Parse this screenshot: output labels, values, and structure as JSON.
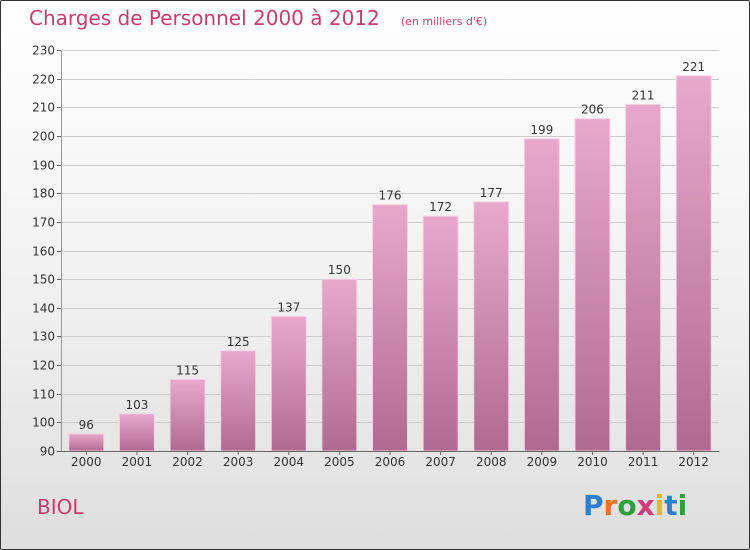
{
  "title": "Charges de Personnel 2000 à 2012",
  "subtitle": "(en milliers d'€)",
  "commune": "BIOL",
  "brand": {
    "letters": [
      "P",
      "r",
      "o",
      "x",
      "i",
      "t",
      "i"
    ],
    "colors": [
      "#2f7fd1",
      "#e8742a",
      "#2f9f3a",
      "#d63a7a",
      "#f2b21c",
      "#2f7fd1",
      "#2f9f3a"
    ]
  },
  "colors": {
    "bar_top": "#e8a8cc",
    "bar_bottom": "#b06a92",
    "bar_edge": "#f5d3e6",
    "grid": "#cccccc",
    "axis_text": "#333333"
  },
  "chart_data": {
    "type": "bar",
    "title": "Charges de Personnel 2000 à 2012",
    "xlabel": "",
    "ylabel": "",
    "categories": [
      "2000",
      "2001",
      "2002",
      "2003",
      "2004",
      "2005",
      "2006",
      "2007",
      "2008",
      "2009",
      "2010",
      "2011",
      "2012"
    ],
    "values": [
      96,
      103,
      115,
      125,
      137,
      150,
      176,
      172,
      177,
      199,
      206,
      211,
      221
    ],
    "ylim": [
      90,
      230
    ],
    "yticks": [
      90,
      100,
      110,
      120,
      130,
      140,
      150,
      160,
      170,
      180,
      190,
      200,
      210,
      220,
      230
    ],
    "grid": true
  }
}
